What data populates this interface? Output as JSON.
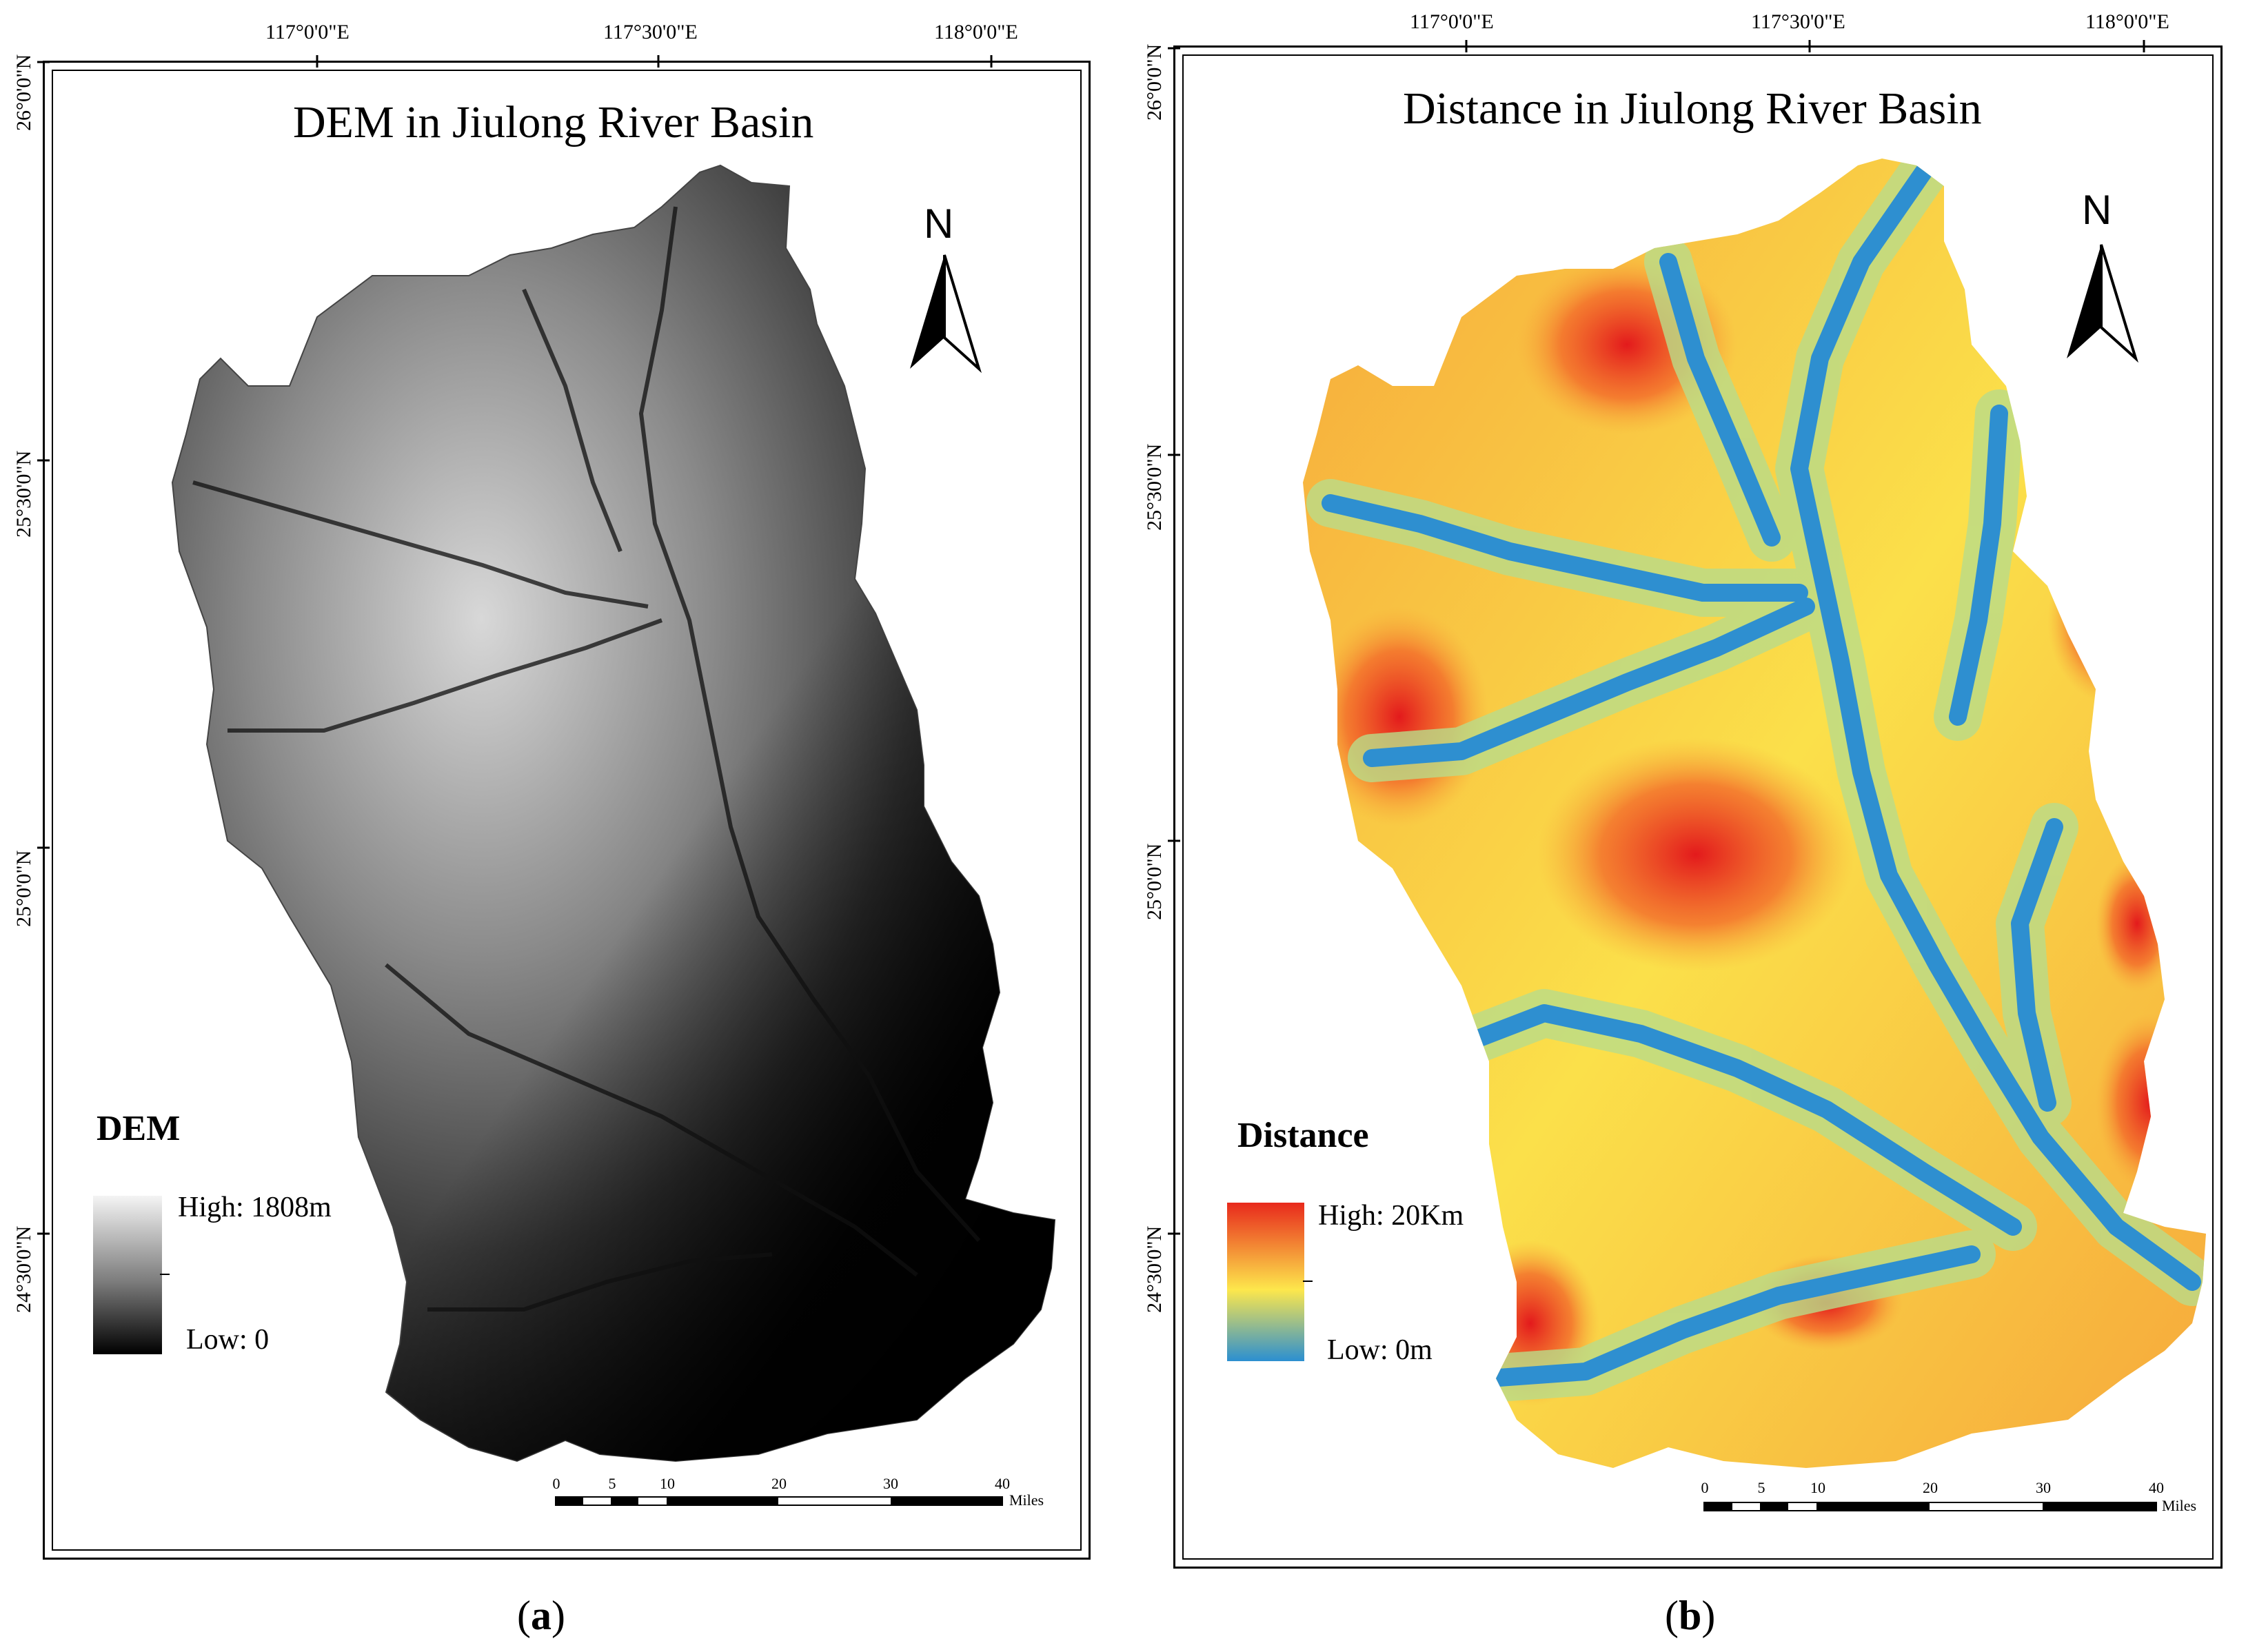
{
  "panels": [
    {
      "id": "a",
      "title": "DEM in Jiulong River Basin",
      "lon_ticks": [
        "117°0'0\"E",
        "117°30'0\"E",
        "118°0'0\"E"
      ],
      "lat_ticks": [
        "26°0'0\"N",
        "25°30'0\"N",
        "25°0'0\"N",
        "24°30'0\"N"
      ],
      "north_label": "N",
      "legend": {
        "title": "DEM",
        "high": "High: 1808m",
        "low": "Low: 0",
        "colors": [
          "#ffffff",
          "#000000"
        ]
      },
      "scale": {
        "ticks": [
          "0",
          "5",
          "10",
          "20",
          "30",
          "40"
        ],
        "unit": "Miles"
      },
      "caption_letter": "a"
    },
    {
      "id": "b",
      "title": "Distance in Jiulong River Basin",
      "lon_ticks": [
        "117°0'0\"E",
        "117°30'0\"E",
        "118°0'0\"E"
      ],
      "lat_ticks": [
        "26°0'0\"N",
        "25°30'0\"N",
        "25°0'0\"N",
        "24°30'0\"N"
      ],
      "north_label": "N",
      "legend": {
        "title": "Distance",
        "high": "High: 20Km",
        "low": "Low: 0m",
        "colors": [
          "#e8291c",
          "#fde74c",
          "#2b8fd1"
        ]
      },
      "scale": {
        "ticks": [
          "0",
          "5",
          "10",
          "20",
          "30",
          "40"
        ],
        "unit": "Miles"
      },
      "caption_letter": "b"
    }
  ],
  "caption_open": "(",
  "caption_close": ")"
}
